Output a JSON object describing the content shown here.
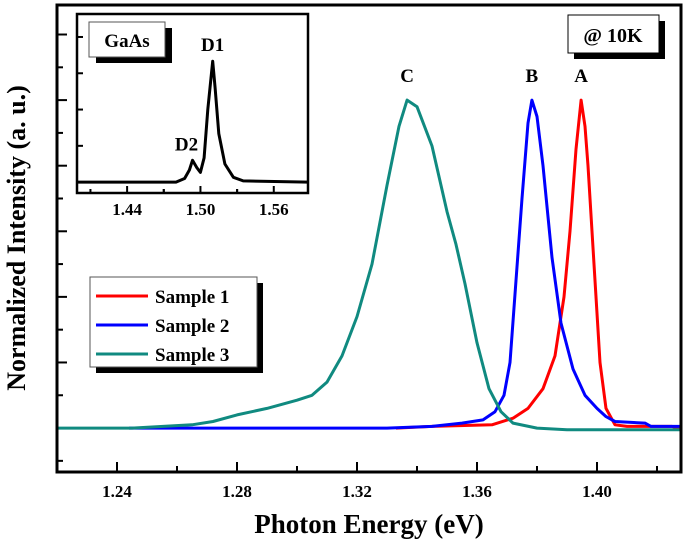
{
  "chart_data": {
    "type": "line",
    "xlabel": "Photon Energy (eV)",
    "ylabel": "Normalized Intensity (a. u.)",
    "xlim": [
      1.22,
      1.428
    ],
    "ylim": [
      -0.134,
      1.29
    ],
    "xticks": [
      "1.24",
      "1.28",
      "1.32",
      "1.36",
      "1.40"
    ],
    "yticks_labeled": false,
    "grid": false,
    "legend_placement": "center-left",
    "annotation_box": "@ 10K",
    "peak_labels": [
      {
        "text": "C",
        "x": 1.3367
      },
      {
        "text": "B",
        "x": 1.3783
      },
      {
        "text": "A",
        "x": 1.3947
      }
    ],
    "series": [
      {
        "name": "Sample 1",
        "color": "#ff0000",
        "points": [
          [
            1.333,
            0
          ],
          [
            1.345,
            0.005
          ],
          [
            1.365,
            0.01
          ],
          [
            1.372,
            0.03
          ],
          [
            1.377,
            0.06
          ],
          [
            1.382,
            0.12
          ],
          [
            1.386,
            0.22
          ],
          [
            1.389,
            0.4
          ],
          [
            1.391,
            0.6
          ],
          [
            1.393,
            0.85
          ],
          [
            1.3947,
            1.0
          ],
          [
            1.396,
            0.92
          ],
          [
            1.397,
            0.8
          ],
          [
            1.399,
            0.5
          ],
          [
            1.401,
            0.2
          ],
          [
            1.403,
            0.06
          ],
          [
            1.406,
            0.01
          ],
          [
            1.41,
            0.005
          ],
          [
            1.425,
            0.005
          ],
          [
            1.428,
            -0.005
          ]
        ]
      },
      {
        "name": "Sample 2",
        "color": "#0000ff",
        "points": [
          [
            1.244,
            0
          ],
          [
            1.33,
            0
          ],
          [
            1.345,
            0.005
          ],
          [
            1.355,
            0.015
          ],
          [
            1.362,
            0.025
          ],
          [
            1.366,
            0.05
          ],
          [
            1.369,
            0.1
          ],
          [
            1.371,
            0.2
          ],
          [
            1.373,
            0.45
          ],
          [
            1.375,
            0.7
          ],
          [
            1.377,
            0.93
          ],
          [
            1.3783,
            1.0
          ],
          [
            1.38,
            0.95
          ],
          [
            1.382,
            0.8
          ],
          [
            1.385,
            0.52
          ],
          [
            1.388,
            0.32
          ],
          [
            1.392,
            0.18
          ],
          [
            1.396,
            0.1
          ],
          [
            1.4,
            0.06
          ],
          [
            1.403,
            0.035
          ],
          [
            1.406,
            0.02
          ],
          [
            1.416,
            0.015
          ],
          [
            1.418,
            0.005
          ],
          [
            1.428,
            0.005
          ]
        ]
      },
      {
        "name": "Sample 3",
        "color": "#108a80",
        "points": [
          [
            1.22,
            0
          ],
          [
            1.245,
            0
          ],
          [
            1.265,
            0.01
          ],
          [
            1.272,
            0.02
          ],
          [
            1.28,
            0.04
          ],
          [
            1.29,
            0.06
          ],
          [
            1.3,
            0.085
          ],
          [
            1.305,
            0.1
          ],
          [
            1.31,
            0.14
          ],
          [
            1.315,
            0.22
          ],
          [
            1.32,
            0.34
          ],
          [
            1.325,
            0.5
          ],
          [
            1.33,
            0.74
          ],
          [
            1.334,
            0.92
          ],
          [
            1.3367,
            1.0
          ],
          [
            1.34,
            0.98
          ],
          [
            1.345,
            0.86
          ],
          [
            1.35,
            0.66
          ],
          [
            1.353,
            0.56
          ],
          [
            1.356,
            0.44
          ],
          [
            1.36,
            0.26
          ],
          [
            1.364,
            0.12
          ],
          [
            1.368,
            0.05
          ],
          [
            1.372,
            0.015
          ],
          [
            1.38,
            0
          ],
          [
            1.39,
            -0.005
          ],
          [
            1.41,
            -0.005
          ],
          [
            1.428,
            -0.005
          ]
        ]
      }
    ],
    "inset": {
      "type": "line",
      "title_box": "GaAs",
      "xlim": [
        1.399,
        1.588
      ],
      "ylim": [
        -0.09,
        1.39
      ],
      "xticks": [
        "1.44",
        "1.50",
        "1.56"
      ],
      "peak_labels": [
        {
          "text": "D1",
          "x": 1.51,
          "y": 1.0
        },
        {
          "text": "D2",
          "x": 1.4935,
          "y": 0.18
        }
      ],
      "color": "#000000",
      "points": [
        [
          1.399,
          0
        ],
        [
          1.48,
          0
        ],
        [
          1.487,
          0.03
        ],
        [
          1.491,
          0.1
        ],
        [
          1.4935,
          0.18
        ],
        [
          1.497,
          0.12
        ],
        [
          1.5,
          0.08
        ],
        [
          1.503,
          0.2
        ],
        [
          1.506,
          0.6
        ],
        [
          1.51,
          1.0
        ],
        [
          1.512,
          0.78
        ],
        [
          1.515,
          0.4
        ],
        [
          1.52,
          0.15
        ],
        [
          1.527,
          0.04
        ],
        [
          1.535,
          0.01
        ],
        [
          1.588,
          0
        ]
      ]
    }
  }
}
